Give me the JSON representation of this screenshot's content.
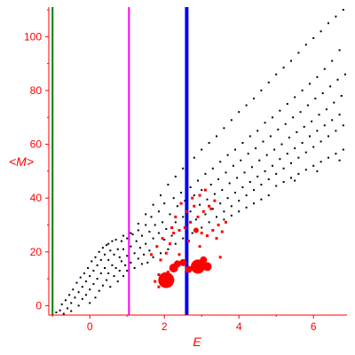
{
  "chart_data": {
    "type": "scatter",
    "title": "",
    "xlabel": "E",
    "ylabel": "<M>",
    "xlim": [
      -1.1,
      6.9
    ],
    "ylim": [
      -3.5,
      111
    ],
    "x_ticks": [
      0,
      2,
      4,
      6
    ],
    "y_ticks": [
      0,
      20,
      40,
      60,
      80,
      100
    ],
    "grid": false,
    "colors": {
      "axes": "#ff0000",
      "background_points": "#000000",
      "highlight_points": "#ff0000",
      "line_green": "#007f00",
      "line_magenta": "#ff00ff",
      "line_blue": "#0000ff"
    },
    "vertical_lines": [
      {
        "x": -1.0,
        "color": "#007f00"
      },
      {
        "x": 1.05,
        "color": "#ff00ff"
      },
      {
        "x": 2.6,
        "color": "#0000ff",
        "thick": true
      }
    ],
    "series": [
      {
        "points": [
          [
            -0.9,
            -2.5
          ],
          [
            -0.8,
            -1.8
          ],
          [
            -0.75,
            0.5
          ],
          [
            -0.7,
            -3.0
          ],
          [
            -0.65,
            2.0
          ],
          [
            -0.6,
            -1.0
          ],
          [
            -0.55,
            4.0
          ],
          [
            -0.5,
            1.0
          ],
          [
            -0.5,
            -2.0
          ],
          [
            -0.45,
            6.0
          ],
          [
            -0.4,
            3.0
          ],
          [
            -0.35,
            8.5
          ],
          [
            -0.3,
            5.0
          ],
          [
            -0.3,
            0.0
          ],
          [
            -0.25,
            10.5
          ],
          [
            -0.2,
            7.0
          ],
          [
            -0.2,
            2.5
          ],
          [
            -0.15,
            12.0
          ],
          [
            -0.1,
            9.0
          ],
          [
            -0.1,
            4.0
          ],
          [
            -0.05,
            14.0
          ],
          [
            0.0,
            11.0
          ],
          [
            0.0,
            6.0
          ],
          [
            0.0,
            1.0
          ],
          [
            0.05,
            16.5
          ],
          [
            0.1,
            13.0
          ],
          [
            0.1,
            8.0
          ],
          [
            0.15,
            18.0
          ],
          [
            0.15,
            3.0
          ],
          [
            0.2,
            15.0
          ],
          [
            0.2,
            10.0
          ],
          [
            0.25,
            20.0
          ],
          [
            0.25,
            5.5
          ],
          [
            0.3,
            17.0
          ],
          [
            0.3,
            12.0
          ],
          [
            0.35,
            21.5
          ],
          [
            0.35,
            7.5
          ],
          [
            0.4,
            19.0
          ],
          [
            0.4,
            14.0
          ],
          [
            0.45,
            22.5
          ],
          [
            0.45,
            9.5
          ],
          [
            0.5,
            23.0
          ],
          [
            0.5,
            17.0
          ],
          [
            0.5,
            12.0
          ],
          [
            0.55,
            20.5
          ],
          [
            0.55,
            7.0
          ],
          [
            0.6,
            24.0
          ],
          [
            0.6,
            15.0
          ],
          [
            0.65,
            19.0
          ],
          [
            0.65,
            11.0
          ],
          [
            0.7,
            24.5
          ],
          [
            0.7,
            14.0
          ],
          [
            0.75,
            21.0
          ],
          [
            0.75,
            9.0
          ],
          [
            0.8,
            18.0
          ],
          [
            0.8,
            13.0
          ],
          [
            0.85,
            24.0
          ],
          [
            0.85,
            16.5
          ],
          [
            0.9,
            11.0
          ],
          [
            0.9,
            21.0
          ],
          [
            0.95,
            15.0
          ],
          [
            1.0,
            25.0
          ],
          [
            1.0,
            18.5
          ],
          [
            1.0,
            13.0
          ],
          [
            1.1,
            22.0
          ],
          [
            1.1,
            16.0
          ],
          [
            1.15,
            26.5
          ],
          [
            1.2,
            19.5
          ],
          [
            1.2,
            14.0
          ],
          [
            1.25,
            24.0
          ],
          [
            1.3,
            17.5
          ],
          [
            1.3,
            28.0
          ],
          [
            1.35,
            21.5
          ],
          [
            1.4,
            15.5
          ],
          [
            1.4,
            26.0
          ],
          [
            1.45,
            19.0
          ],
          [
            1.5,
            30.0
          ],
          [
            1.5,
            23.0
          ],
          [
            1.55,
            16.0
          ],
          [
            1.6,
            27.5
          ],
          [
            1.6,
            20.5
          ],
          [
            1.65,
            33.0
          ],
          [
            1.7,
            25.0
          ],
          [
            1.7,
            18.0
          ],
          [
            1.75,
            30.0
          ],
          [
            1.8,
            22.0
          ],
          [
            1.85,
            35.0
          ],
          [
            1.85,
            27.0
          ],
          [
            1.9,
            19.5
          ],
          [
            1.95,
            31.0
          ],
          [
            2.0,
            24.5
          ],
          [
            2.0,
            38.0
          ],
          [
            2.05,
            28.5
          ],
          [
            2.1,
            21.0
          ],
          [
            2.15,
            34.0
          ],
          [
            2.2,
            26.0
          ],
          [
            2.25,
            40.0
          ],
          [
            2.3,
            31.0
          ],
          [
            2.3,
            23.0
          ],
          [
            2.35,
            37.0
          ],
          [
            2.4,
            28.0
          ],
          [
            2.45,
            42.0
          ],
          [
            2.5,
            33.0
          ],
          [
            2.5,
            25.0
          ],
          [
            2.55,
            39.0
          ],
          [
            2.6,
            30.0
          ],
          [
            2.7,
            44.0
          ],
          [
            2.7,
            35.0
          ],
          [
            2.75,
            27.0
          ],
          [
            2.8,
            41.0
          ],
          [
            2.85,
            32.0
          ],
          [
            2.9,
            46.5
          ],
          [
            2.95,
            37.5
          ],
          [
            3.0,
            29.0
          ],
          [
            3.0,
            43.0
          ],
          [
            3.1,
            34.0
          ],
          [
            3.1,
            49.0
          ],
          [
            3.15,
            39.5
          ],
          [
            3.2,
            31.0
          ],
          [
            3.25,
            45.0
          ],
          [
            3.3,
            36.0
          ],
          [
            3.3,
            51.0
          ],
          [
            3.35,
            41.5
          ],
          [
            3.4,
            33.0
          ],
          [
            3.45,
            47.0
          ],
          [
            3.5,
            38.0
          ],
          [
            3.5,
            53.5
          ],
          [
            3.55,
            43.0
          ],
          [
            3.6,
            35.0
          ],
          [
            3.65,
            49.5
          ],
          [
            3.7,
            40.0
          ],
          [
            3.7,
            56.0
          ],
          [
            3.75,
            45.5
          ],
          [
            3.8,
            37.0
          ],
          [
            3.85,
            52.0
          ],
          [
            3.9,
            42.0
          ],
          [
            3.9,
            58.0
          ],
          [
            3.95,
            47.5
          ],
          [
            4.0,
            39.0
          ],
          [
            4.05,
            54.0
          ],
          [
            4.1,
            44.0
          ],
          [
            4.1,
            60.5
          ],
          [
            4.15,
            49.5
          ],
          [
            4.2,
            41.0
          ],
          [
            4.25,
            56.5
          ],
          [
            4.3,
            46.0
          ],
          [
            4.3,
            63.0
          ],
          [
            4.35,
            51.5
          ],
          [
            4.4,
            43.0
          ],
          [
            4.45,
            58.5
          ],
          [
            4.5,
            48.0
          ],
          [
            4.5,
            65.0
          ],
          [
            4.55,
            54.0
          ],
          [
            4.6,
            45.0
          ],
          [
            4.65,
            61.0
          ],
          [
            4.7,
            50.0
          ],
          [
            4.7,
            68.0
          ],
          [
            4.75,
            56.0
          ],
          [
            4.8,
            47.0
          ],
          [
            4.85,
            63.0
          ],
          [
            4.9,
            52.0
          ],
          [
            4.9,
            70.0
          ],
          [
            4.95,
            58.0
          ],
          [
            5.0,
            49.0
          ],
          [
            5.05,
            65.5
          ],
          [
            5.1,
            54.5
          ],
          [
            5.1,
            72.5
          ],
          [
            5.15,
            60.0
          ],
          [
            5.2,
            51.0
          ],
          [
            5.25,
            67.5
          ],
          [
            5.3,
            56.5
          ],
          [
            5.3,
            75.0
          ],
          [
            5.35,
            62.5
          ],
          [
            5.4,
            53.0
          ],
          [
            5.45,
            70.0
          ],
          [
            5.5,
            58.5
          ],
          [
            5.5,
            77.5
          ],
          [
            5.55,
            64.5
          ],
          [
            5.6,
            55.0
          ],
          [
            5.65,
            72.0
          ],
          [
            5.7,
            60.5
          ],
          [
            5.7,
            80.0
          ],
          [
            5.75,
            66.5
          ],
          [
            5.8,
            57.0
          ],
          [
            5.85,
            74.5
          ],
          [
            5.9,
            63.0
          ],
          [
            5.9,
            82.5
          ],
          [
            5.95,
            68.5
          ],
          [
            6.0,
            59.0
          ],
          [
            6.05,
            77.0
          ],
          [
            6.1,
            65.0
          ],
          [
            6.1,
            85.0
          ],
          [
            6.15,
            71.0
          ],
          [
            6.2,
            61.0
          ],
          [
            6.25,
            79.0
          ],
          [
            6.3,
            67.0
          ],
          [
            6.3,
            88.0
          ],
          [
            6.35,
            73.0
          ],
          [
            6.4,
            63.0
          ],
          [
            6.45,
            81.5
          ],
          [
            6.5,
            69.0
          ],
          [
            6.5,
            91.0
          ],
          [
            6.55,
            75.5
          ],
          [
            6.6,
            65.0
          ],
          [
            6.65,
            84.0
          ],
          [
            6.7,
            71.0
          ],
          [
            6.7,
            95.0
          ],
          [
            6.75,
            78.0
          ],
          [
            6.8,
            67.0
          ],
          [
            6.85,
            86.0
          ],
          [
            2.8,
            55.0
          ],
          [
            3.0,
            58.0
          ],
          [
            3.2,
            60.5
          ],
          [
            3.4,
            63.0
          ],
          [
            3.6,
            66.0
          ],
          [
            3.8,
            69.0
          ],
          [
            4.0,
            72.0
          ],
          [
            4.2,
            74.5
          ],
          [
            4.4,
            77.0
          ],
          [
            4.6,
            80.0
          ],
          [
            4.8,
            83.0
          ],
          [
            5.0,
            86.0
          ],
          [
            5.2,
            88.5
          ],
          [
            5.4,
            91.0
          ],
          [
            5.6,
            94.0
          ],
          [
            5.8,
            97.0
          ],
          [
            6.0,
            99.5
          ],
          [
            6.2,
            102.0
          ],
          [
            6.4,
            105.0
          ],
          [
            6.6,
            107.5
          ],
          [
            6.8,
            110.0
          ],
          [
            2.5,
            51.0
          ],
          [
            2.3,
            48.0
          ],
          [
            2.1,
            45.0
          ],
          [
            1.9,
            41.0
          ],
          [
            1.7,
            37.5
          ],
          [
            1.5,
            34.0
          ],
          [
            1.3,
            30.5
          ],
          [
            1.1,
            27.0
          ],
          [
            0.9,
            26.0
          ],
          [
            5.0,
            44.5
          ],
          [
            5.2,
            46.0
          ],
          [
            5.4,
            47.5
          ],
          [
            5.6,
            49.0
          ],
          [
            5.8,
            50.5
          ],
          [
            6.0,
            52.0
          ],
          [
            6.2,
            53.5
          ],
          [
            6.4,
            55.0
          ],
          [
            6.6,
            56.5
          ],
          [
            6.8,
            58.0
          ],
          [
            3.6,
            32.0
          ],
          [
            3.8,
            33.5
          ],
          [
            4.0,
            35.0
          ],
          [
            4.2,
            36.5
          ],
          [
            4.4,
            38.0
          ],
          [
            4.6,
            39.5
          ],
          [
            4.8,
            41.0
          ],
          [
            5.5,
            46.5
          ],
          [
            6.1,
            50.0
          ],
          [
            6.7,
            54.0
          ]
        ]
      },
      {
        "points": [
          [
            2.05,
            9.5,
            9
          ],
          [
            2.25,
            14.0,
            5
          ],
          [
            2.35,
            15.5,
            4
          ],
          [
            2.5,
            16.0,
            4
          ],
          [
            2.65,
            13.5,
            4
          ],
          [
            2.9,
            14.5,
            8
          ],
          [
            3.05,
            17.0,
            4
          ],
          [
            3.15,
            14.5,
            5
          ],
          [
            3.5,
            18.0,
            2
          ],
          [
            2.0,
            7.5,
            2
          ],
          [
            1.85,
            7.0,
            2
          ],
          [
            1.75,
            9.0,
            2
          ],
          [
            1.85,
            11.5,
            2
          ],
          [
            2.1,
            12.5,
            2
          ],
          [
            2.4,
            19.0,
            2
          ],
          [
            2.65,
            24.0,
            2
          ],
          [
            1.9,
            17.0,
            2
          ],
          [
            2.05,
            19.5,
            2
          ],
          [
            2.15,
            23.0,
            2
          ],
          [
            2.25,
            27.0,
            2
          ],
          [
            2.4,
            28.0,
            2
          ],
          [
            2.55,
            29.0,
            2
          ],
          [
            2.7,
            31.0,
            2
          ],
          [
            2.85,
            28.0,
            3
          ],
          [
            3.0,
            27.0,
            2
          ],
          [
            3.15,
            26.0,
            2
          ],
          [
            3.3,
            28.0,
            2
          ],
          [
            3.45,
            30.0,
            2
          ],
          [
            2.9,
            33.0,
            2
          ],
          [
            3.05,
            35.0,
            2
          ],
          [
            3.2,
            37.0,
            2
          ],
          [
            3.35,
            39.0,
            2
          ],
          [
            2.75,
            40.0,
            2
          ],
          [
            2.95,
            41.0,
            2
          ],
          [
            3.1,
            43.0,
            2
          ],
          [
            3.25,
            36.0,
            2
          ],
          [
            2.6,
            35.0,
            2
          ],
          [
            2.45,
            38.0,
            2
          ],
          [
            2.3,
            33.0,
            2
          ],
          [
            2.2,
            29.0,
            2
          ],
          [
            1.95,
            25.0,
            2
          ],
          [
            1.8,
            22.0,
            2
          ],
          [
            1.65,
            19.0,
            2
          ],
          [
            3.55,
            27.5,
            2
          ],
          [
            3.65,
            31.0,
            2
          ],
          [
            2.8,
            37.0,
            2
          ],
          [
            3.4,
            25.0,
            2
          ],
          [
            2.95,
            22.0,
            2
          ]
        ]
      }
    ]
  }
}
